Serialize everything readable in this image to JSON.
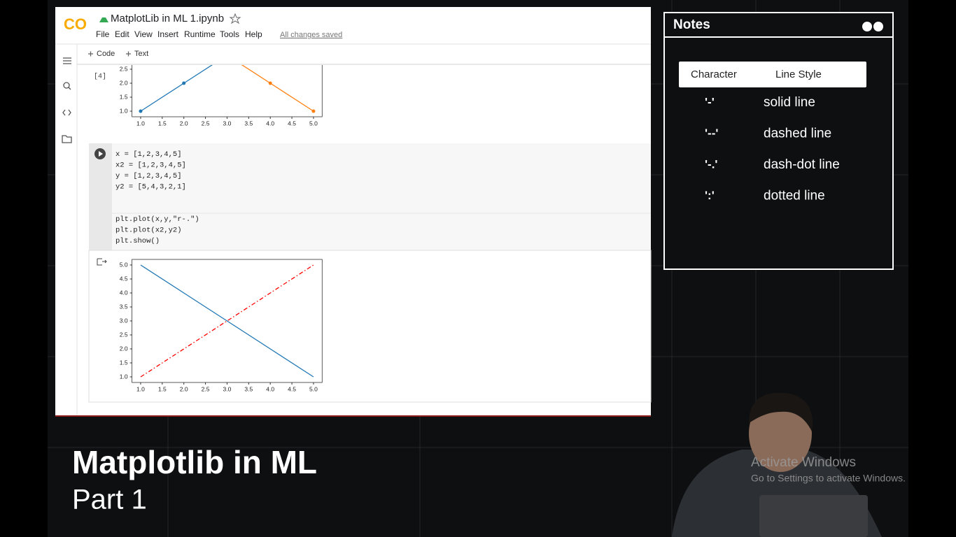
{
  "colab": {
    "logo": "CO",
    "file_name": "MatplotLib in ML 1.ipynb",
    "menu": [
      "File",
      "Edit",
      "View",
      "Insert",
      "Runtime",
      "Tools",
      "Help"
    ],
    "save_status": "All changes saved",
    "toolbar": [
      "Code",
      "Text"
    ]
  },
  "cells": [
    {
      "label": "[4]",
      "plot": {
        "xlim": [
          0.8,
          5.2
        ],
        "ylim": [
          0.8,
          5.2
        ],
        "xticks": [
          {
            "value": 1,
            "label": "1.0"
          },
          1.5,
          {
            "value": 2,
            "label": "2.0"
          },
          2.5,
          {
            "value": 3,
            "label": "3.0"
          },
          3.5,
          {
            "value": 4,
            "label": "4.0"
          },
          4.5,
          {
            "value": 5,
            "label": "5.0"
          }
        ],
        "yticks": [
          {
            "value": 1,
            "label": "1.0"
          },
          1.5,
          {
            "value": 2,
            "label": "2.0"
          },
          2.5
        ],
        "series": [
          {
            "color": "#1f77b4",
            "style": "solid",
            "markers": true,
            "x": [
              1,
              2,
              3,
              4,
              5
            ],
            "values": [
              1,
              2,
              3,
              4,
              5
            ]
          },
          {
            "color": "#ff7f0e",
            "style": "solid",
            "markers": true,
            "x": [
              1,
              2,
              3,
              4,
              5
            ],
            "values": [
              5,
              4,
              3,
              2,
              1
            ]
          }
        ]
      }
    },
    {
      "code": [
        [
          "x = [1,2,3,4,5]",
          "x2 = [1,2,3,4,5]",
          "y = [1,2,3,4,5]",
          "y2 = [5,4,3,2,1]"
        ],
        [
          "plt.plot(x,y,\"r-.\")",
          "plt.plot(x2,y2)",
          "plt.show()"
        ]
      ],
      "plot": {
        "xlim": [
          0.8,
          5.2
        ],
        "ylim": [
          0.8,
          5.2
        ],
        "xticks": [
          {
            "value": 1,
            "label": "1.0"
          },
          1.5,
          {
            "value": 2,
            "label": "2.0"
          },
          2.5,
          {
            "value": 3,
            "label": "3.0"
          },
          3.5,
          {
            "value": 4,
            "label": "4.0"
          },
          4.5,
          {
            "value": 5,
            "label": "5.0"
          }
        ],
        "yticks": [
          {
            "value": 1,
            "label": "1.0"
          },
          1.5,
          {
            "value": 2,
            "label": "2.0"
          },
          2.5,
          {
            "value": 3,
            "label": "3.0"
          },
          3.5,
          {
            "value": 4,
            "label": "4.0"
          },
          4.5,
          {
            "value": 5,
            "label": "5.0"
          }
        ],
        "series": [
          {
            "color": "#ff0000",
            "style": "dashdot",
            "markers": false,
            "x": [
              1,
              2,
              3,
              4,
              5
            ],
            "values": [
              1,
              2,
              3,
              4,
              5
            ]
          },
          {
            "color": "#1f77b4",
            "style": "solid",
            "markers": false,
            "x": [
              1,
              2,
              3,
              4,
              5
            ],
            "values": [
              5,
              4,
              3,
              2,
              1
            ]
          }
        ]
      }
    }
  ],
  "notes": {
    "title": "Notes",
    "headers": [
      "Character",
      "Line Style"
    ],
    "rows": [
      [
        "'-'",
        "solid line"
      ],
      [
        "'--'",
        "dashed line"
      ],
      [
        "'-.'",
        "dash-dot line"
      ],
      [
        "':'",
        "dotted line"
      ]
    ]
  },
  "overlay": {
    "title": "Matplotlib in ML",
    "subtitle": "Part 1"
  },
  "watermark": {
    "title": "Activate Windows",
    "text": "Go to Settings to activate Windows."
  }
}
